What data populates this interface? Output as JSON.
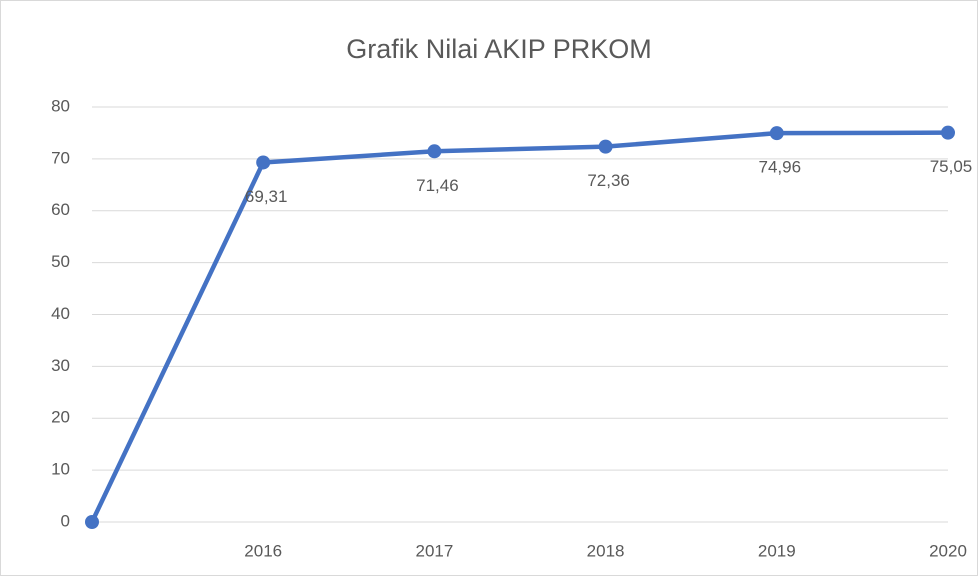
{
  "chart_data": {
    "type": "line",
    "title": "Grafik Nilai AKIP PRKOM",
    "categories": [
      null,
      "2016",
      "2017",
      "2018",
      "2019",
      "2020"
    ],
    "values": [
      0,
      69.31,
      71.46,
      72.36,
      74.96,
      75.05
    ],
    "value_labels": [
      null,
      "69,31",
      "71,46",
      "72,36",
      "74,96",
      "75,05"
    ],
    "color": "#4472c4",
    "ylim": [
      0,
      80
    ],
    "yticks": [
      0,
      10,
      20,
      30,
      40,
      50,
      60,
      70,
      80
    ],
    "grid": true
  }
}
